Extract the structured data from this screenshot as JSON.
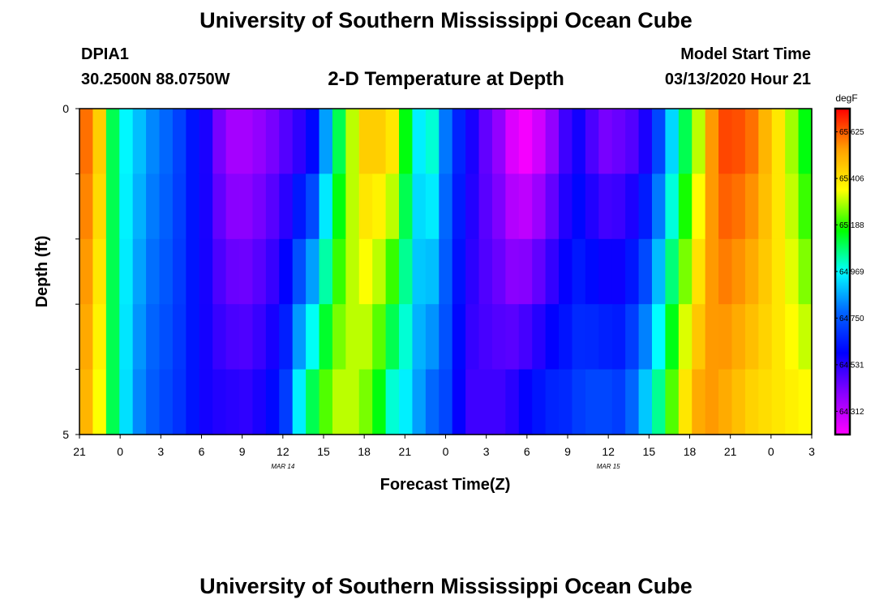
{
  "header": {
    "title": "University of Southern Mississippi Ocean Cube",
    "station_id": "DPIA1",
    "station_location": "30.2500N 88.0750W",
    "plot_title": "2-D Temperature at Depth",
    "model_start_label": "Model Start Time",
    "model_start_value": "03/13/2020 Hour 21"
  },
  "footer": {
    "title": "University of Southern Mississippi Ocean Cube"
  },
  "chart_data": {
    "type": "heatmap",
    "title": "2-D Temperature at Depth",
    "xlabel": "Forecast Time(Z)",
    "ylabel": "Depth (ft)",
    "x_tick_labels": [
      "21",
      "0",
      "3",
      "6",
      "9",
      "12",
      "15",
      "18",
      "21",
      "0",
      "3",
      "6",
      "9",
      "12",
      "15",
      "18",
      "21",
      "0",
      "3"
    ],
    "x_hours": [
      0,
      3,
      6,
      9,
      12,
      15,
      18,
      21,
      24,
      27,
      30,
      33,
      36,
      39,
      42,
      45,
      48,
      51,
      54
    ],
    "date_labels": [
      {
        "label": "MAR 14",
        "hour": 15
      },
      {
        "label": "MAR 15",
        "hour": 39
      }
    ],
    "y_tick_labels": [
      "0",
      "5"
    ],
    "ylim": [
      0,
      5
    ],
    "depth_levels_ft": [
      0,
      1,
      2,
      3,
      4,
      5
    ],
    "colorbar": {
      "unit": "degF",
      "labels": [
        "65.625",
        "65.406",
        "65.188",
        "64.969",
        "64.750",
        "64.531",
        "64.312"
      ],
      "min": 64.203,
      "max": 65.734,
      "colors": [
        "#ff00ff",
        "#8a00ff",
        "#0000ff",
        "#0064ff",
        "#00ffff",
        "#00ff00",
        "#ffff00",
        "#ffa000",
        "#ff0000"
      ]
    },
    "time_hours": [
      0,
      1,
      2,
      3,
      4,
      5,
      6,
      7,
      8,
      9,
      10,
      11,
      12,
      13,
      14,
      15,
      16,
      17,
      18,
      19,
      20,
      21,
      22,
      23,
      24,
      25,
      26,
      27,
      28,
      29,
      30,
      31,
      32,
      33,
      34,
      35,
      36,
      37,
      38,
      39,
      40,
      41,
      42,
      43,
      44,
      45,
      46,
      47,
      48,
      49,
      50,
      51,
      52,
      53,
      54
    ],
    "surface_temps": [
      65.6,
      65.45,
      65.1,
      64.96,
      64.89,
      64.82,
      64.78,
      64.71,
      64.62,
      64.55,
      64.42,
      64.35,
      64.35,
      64.38,
      64.42,
      64.47,
      64.52,
      64.6,
      64.85,
      65.1,
      65.3,
      65.45,
      65.45,
      65.4,
      65.15,
      64.95,
      65.0,
      64.8,
      64.65,
      64.55,
      64.45,
      64.38,
      64.26,
      64.22,
      64.28,
      64.38,
      64.5,
      64.56,
      64.48,
      64.42,
      64.44,
      64.47,
      64.55,
      64.72,
      64.92,
      65.1,
      65.3,
      65.55,
      65.65,
      65.64,
      65.6,
      65.5,
      65.4,
      65.28,
      65.15
    ],
    "bottom_temps": [
      65.5,
      65.35,
      65.1,
      64.93,
      64.82,
      64.76,
      64.72,
      64.68,
      64.62,
      64.56,
      64.54,
      64.53,
      64.52,
      64.55,
      64.6,
      64.7,
      64.95,
      65.1,
      65.22,
      65.3,
      65.3,
      65.25,
      65.15,
      65.0,
      64.95,
      64.85,
      64.78,
      64.72,
      64.58,
      64.5,
      64.5,
      64.5,
      64.53,
      64.58,
      64.62,
      64.65,
      64.66,
      64.7,
      64.72,
      64.72,
      64.7,
      64.78,
      64.9,
      65.05,
      65.22,
      65.4,
      65.52,
      65.55,
      65.52,
      65.48,
      65.44,
      65.42,
      65.4,
      65.38,
      65.36
    ]
  }
}
